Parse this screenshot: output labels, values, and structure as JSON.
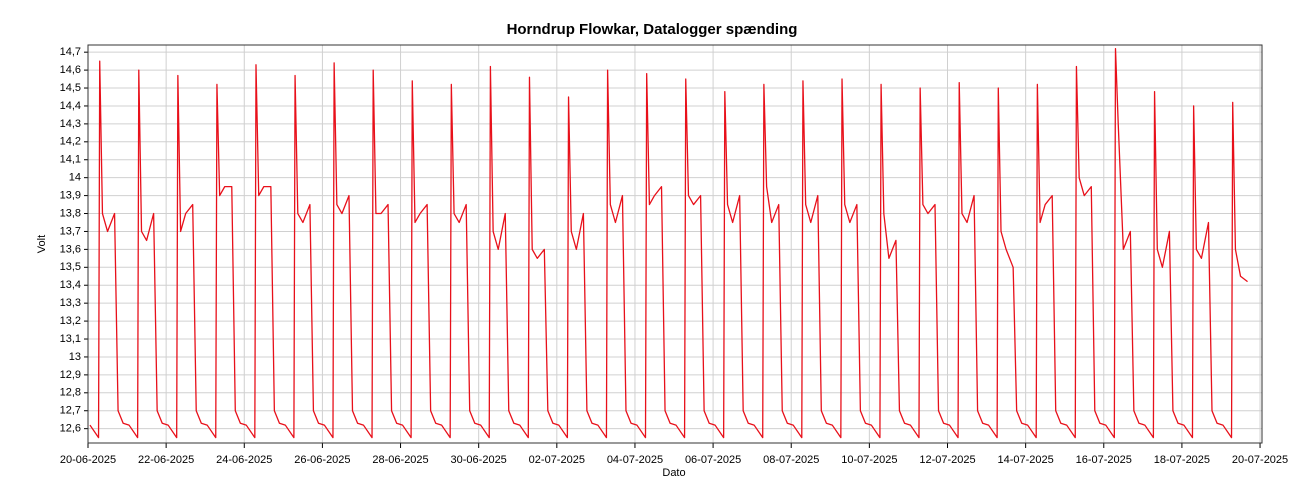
{
  "chart_data": {
    "type": "line",
    "title": "Horndrup Flowkar, Datalogger spænding",
    "xlabel": "Dato",
    "ylabel": "Volt",
    "grid": true,
    "xlim": [
      0,
      30.05
    ],
    "ylim": [
      12.52,
      14.74
    ],
    "xticks": [
      {
        "value": 0,
        "label": "20-06-2025"
      },
      {
        "value": 2,
        "label": "22-06-2025"
      },
      {
        "value": 4,
        "label": "24-06-2025"
      },
      {
        "value": 6,
        "label": "26-06-2025"
      },
      {
        "value": 8,
        "label": "28-06-2025"
      },
      {
        "value": 10,
        "label": "30-06-2025"
      },
      {
        "value": 12,
        "label": "02-07-2025"
      },
      {
        "value": 14,
        "label": "04-07-2025"
      },
      {
        "value": 16,
        "label": "06-07-2025"
      },
      {
        "value": 18,
        "label": "08-07-2025"
      },
      {
        "value": 20,
        "label": "10-07-2025"
      },
      {
        "value": 22,
        "label": "12-07-2025"
      },
      {
        "value": 24,
        "label": "14-07-2025"
      },
      {
        "value": 26,
        "label": "16-07-2025"
      },
      {
        "value": 28,
        "label": "18-07-2025"
      },
      {
        "value": 30,
        "label": "20-07-2025"
      }
    ],
    "yticks": [
      {
        "value": 12.6,
        "label": "12,6"
      },
      {
        "value": 12.7,
        "label": "12,7"
      },
      {
        "value": 12.8,
        "label": "12,8"
      },
      {
        "value": 12.9,
        "label": "12,9"
      },
      13,
      {
        "value": 13.1,
        "label": "13,1"
      },
      {
        "value": 13.2,
        "label": "13,2"
      },
      {
        "value": 13.3,
        "label": "13,3"
      },
      {
        "value": 13.4,
        "label": "13,4"
      },
      {
        "value": 13.5,
        "label": "13,5"
      },
      {
        "value": 13.6,
        "label": "13,6"
      },
      {
        "value": 13.7,
        "label": "13,7"
      },
      {
        "value": 13.8,
        "label": "13,8"
      },
      {
        "value": 13.9,
        "label": "13,9"
      },
      14,
      {
        "value": 14.1,
        "label": "14,1"
      },
      {
        "value": 14.2,
        "label": "14,2"
      },
      {
        "value": 14.3,
        "label": "14,3"
      },
      {
        "value": 14.4,
        "label": "14,4"
      },
      {
        "value": 14.5,
        "label": "14,5"
      },
      {
        "value": 14.6,
        "label": "14,6"
      },
      {
        "value": 14.7,
        "label": "14,7"
      }
    ],
    "x": [
      0.05,
      0.27,
      0.3,
      0.37,
      0.5,
      0.68,
      0.77,
      0.9,
      1.05,
      1.27,
      1.3,
      1.37,
      1.5,
      1.68,
      1.77,
      1.9,
      2.05,
      2.27,
      2.3,
      2.37,
      2.5,
      2.68,
      2.77,
      2.9,
      3.05,
      3.27,
      3.3,
      3.37,
      3.5,
      3.68,
      3.77,
      3.9,
      4.05,
      4.27,
      4.3,
      4.37,
      4.5,
      4.68,
      4.77,
      4.9,
      5.05,
      5.27,
      5.3,
      5.37,
      5.5,
      5.68,
      5.77,
      5.9,
      6.05,
      6.27,
      6.3,
      6.37,
      6.5,
      6.68,
      6.77,
      6.9,
      7.05,
      7.27,
      7.3,
      7.37,
      7.5,
      7.68,
      7.77,
      7.9,
      8.05,
      8.27,
      8.3,
      8.37,
      8.5,
      8.68,
      8.77,
      8.9,
      9.05,
      9.27,
      9.3,
      9.37,
      9.5,
      9.68,
      9.77,
      9.9,
      10.05,
      10.27,
      10.3,
      10.37,
      10.5,
      10.68,
      10.77,
      10.9,
      11.05,
      11.27,
      11.3,
      11.37,
      11.5,
      11.68,
      11.77,
      11.9,
      12.05,
      12.27,
      12.3,
      12.37,
      12.5,
      12.68,
      12.77,
      12.9,
      13.05,
      13.27,
      13.3,
      13.37,
      13.5,
      13.68,
      13.77,
      13.9,
      14.05,
      14.27,
      14.3,
      14.37,
      14.5,
      14.68,
      14.77,
      14.9,
      15.05,
      15.27,
      15.3,
      15.37,
      15.5,
      15.68,
      15.77,
      15.9,
      16.05,
      16.27,
      16.3,
      16.37,
      16.5,
      16.68,
      16.77,
      16.9,
      17.05,
      17.27,
      17.3,
      17.37,
      17.5,
      17.68,
      17.77,
      17.9,
      18.05,
      18.27,
      18.3,
      18.37,
      18.5,
      18.68,
      18.77,
      18.9,
      19.05,
      19.27,
      19.3,
      19.37,
      19.5,
      19.68,
      19.77,
      19.9,
      20.05,
      20.27,
      20.3,
      20.37,
      20.5,
      20.68,
      20.77,
      20.9,
      21.05,
      21.27,
      21.3,
      21.37,
      21.5,
      21.68,
      21.77,
      21.9,
      22.05,
      22.27,
      22.3,
      22.37,
      22.5,
      22.68,
      22.77,
      22.9,
      23.05,
      23.27,
      23.3,
      23.37,
      23.5,
      23.68,
      23.77,
      23.9,
      24.05,
      24.27,
      24.3,
      24.37,
      24.5,
      24.68,
      24.77,
      24.9,
      25.05,
      25.27,
      25.3,
      25.37,
      25.5,
      25.68,
      25.77,
      25.9,
      26.05,
      26.27,
      26.3,
      26.37,
      26.5,
      26.68,
      26.77,
      26.9,
      27.05,
      27.27,
      27.3,
      27.37,
      27.5,
      27.68,
      27.77,
      27.9,
      28.05,
      28.27,
      28.3,
      28.37,
      28.5,
      28.68,
      28.77,
      28.9,
      29.05,
      29.27,
      29.3,
      29.37,
      29.5,
      29.68
    ],
    "series": [
      {
        "name": "Volt",
        "color": "#e8101a",
        "values": [
          12.62,
          12.55,
          14.65,
          13.8,
          13.7,
          13.8,
          12.7,
          12.63,
          12.62,
          12.55,
          14.6,
          13.7,
          13.65,
          13.8,
          12.7,
          12.63,
          12.62,
          12.55,
          14.57,
          13.7,
          13.8,
          13.85,
          12.7,
          12.63,
          12.62,
          12.55,
          14.52,
          13.9,
          13.95,
          13.95,
          12.7,
          12.63,
          12.62,
          12.55,
          14.63,
          13.9,
          13.95,
          13.95,
          12.7,
          12.63,
          12.62,
          12.55,
          14.57,
          13.8,
          13.75,
          13.85,
          12.7,
          12.63,
          12.62,
          12.55,
          14.64,
          13.85,
          13.8,
          13.9,
          12.7,
          12.63,
          12.62,
          12.55,
          14.6,
          13.8,
          13.8,
          13.85,
          12.7,
          12.63,
          12.62,
          12.55,
          14.54,
          13.75,
          13.8,
          13.85,
          12.7,
          12.63,
          12.62,
          12.55,
          14.52,
          13.8,
          13.75,
          13.85,
          12.7,
          12.63,
          12.62,
          12.55,
          14.62,
          13.7,
          13.6,
          13.8,
          12.7,
          12.63,
          12.62,
          12.55,
          14.56,
          13.6,
          13.55,
          13.6,
          12.7,
          12.63,
          12.62,
          12.55,
          14.45,
          13.7,
          13.6,
          13.8,
          12.7,
          12.63,
          12.62,
          12.55,
          14.6,
          13.85,
          13.75,
          13.9,
          12.7,
          12.63,
          12.62,
          12.55,
          14.58,
          13.85,
          13.9,
          13.95,
          12.7,
          12.63,
          12.62,
          12.55,
          14.55,
          13.9,
          13.85,
          13.9,
          12.7,
          12.63,
          12.62,
          12.55,
          14.48,
          13.85,
          13.75,
          13.9,
          12.7,
          12.63,
          12.62,
          12.55,
          14.52,
          13.95,
          13.75,
          13.85,
          12.7,
          12.63,
          12.62,
          12.55,
          14.54,
          13.85,
          13.75,
          13.9,
          12.7,
          12.63,
          12.62,
          12.55,
          14.55,
          13.85,
          13.75,
          13.85,
          12.7,
          12.63,
          12.62,
          12.55,
          14.52,
          13.8,
          13.55,
          13.65,
          12.7,
          12.63,
          12.62,
          12.55,
          14.5,
          13.85,
          13.8,
          13.85,
          12.7,
          12.63,
          12.62,
          12.55,
          14.53,
          13.8,
          13.75,
          13.9,
          12.7,
          12.63,
          12.62,
          12.55,
          14.5,
          13.7,
          13.6,
          13.5,
          12.7,
          12.63,
          12.62,
          12.55,
          14.52,
          13.75,
          13.85,
          13.9,
          12.7,
          12.63,
          12.62,
          12.55,
          14.62,
          14.0,
          13.9,
          13.95,
          12.7,
          12.63,
          12.62,
          12.55,
          14.72,
          14.3,
          13.6,
          13.7,
          12.7,
          12.63,
          12.62,
          12.55,
          14.48,
          13.6,
          13.5,
          13.7,
          12.7,
          12.63,
          12.62,
          12.55,
          14.4,
          13.6,
          13.55,
          13.75,
          12.7,
          12.63,
          12.62,
          12.55,
          14.42,
          13.6,
          13.45,
          13.42
        ]
      }
    ]
  }
}
